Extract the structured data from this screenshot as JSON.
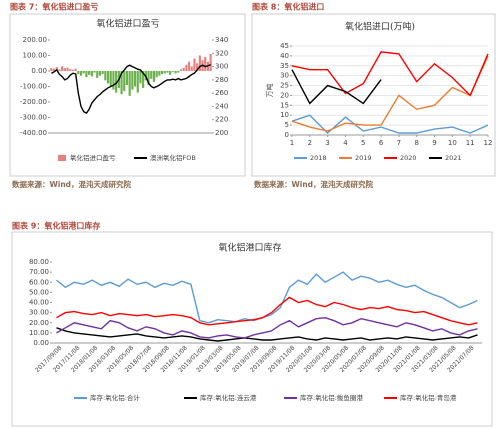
{
  "chart_data": [
    {
      "type": "bar_line",
      "figure_label": "图表 7：氧化铝进口盈亏",
      "title": "氧化铝进口盈亏",
      "source": "数据来源：Wind，混沌天成研究院",
      "ylim": [
        -400,
        200
      ],
      "yticks": [
        {
          "value": 200,
          "label": "200.00"
        },
        {
          "value": 100,
          "label": "100.00"
        },
        {
          "value": 0,
          "label": "0.00"
        },
        {
          "value": -100,
          "label": "-100.00"
        },
        {
          "value": -200,
          "label": "-200.00"
        },
        {
          "value": -300,
          "label": "-300.00"
        },
        {
          "value": -400,
          "label": "-400.00"
        }
      ],
      "y2lim": [
        200,
        340
      ],
      "y2ticks": [
        200,
        220,
        240,
        260,
        280,
        300,
        320,
        340
      ],
      "grid": false,
      "series": [
        {
          "name": "氧化铝进口盈亏",
          "type": "bar",
          "color": "#e88080",
          "color_negative": "#6ab04c",
          "values": [
            20,
            15,
            25,
            10,
            30,
            18,
            22,
            12,
            8,
            15,
            -20,
            -30,
            -15,
            -40,
            -25,
            -35,
            -10,
            -45,
            -30,
            -20,
            -60,
            -80,
            -100,
            -120,
            -140,
            -110,
            -150,
            -130,
            -90,
            -160,
            -120,
            -100,
            -140,
            -80,
            -110,
            -60,
            -90,
            -50,
            -70,
            -40,
            -30,
            -20,
            -15,
            -10,
            -25,
            -5,
            -15,
            -10,
            10,
            20,
            40,
            60,
            30,
            80,
            50,
            100,
            70,
            90,
            60,
            110
          ]
        },
        {
          "name": "澳洲氧化铝FOB",
          "type": "line",
          "axis": "y2",
          "color": "#000000",
          "values": [
            290,
            292,
            295,
            288,
            285,
            280,
            282,
            287,
            290,
            289,
            260,
            240,
            232,
            230,
            236,
            245,
            250,
            255,
            258,
            262,
            265,
            268,
            270,
            272,
            275,
            280,
            290,
            295,
            300,
            302,
            300,
            298,
            296,
            295,
            290,
            285,
            275,
            270,
            268,
            270,
            272,
            275,
            278,
            280,
            280,
            281,
            280,
            282,
            280,
            281,
            282,
            285,
            288,
            290,
            295,
            300,
            302,
            300,
            301,
            303
          ]
        }
      ]
    },
    {
      "type": "line",
      "figure_label": "图表 8：氧化铝进口",
      "title": "氧化铝进口(万吨)",
      "y_label": "万吨",
      "source": "数据来源：Wind，混沌天成研究院",
      "x": [
        1,
        2,
        3,
        4,
        5,
        6,
        7,
        8,
        9,
        10,
        11,
        12
      ],
      "xlim": [
        1,
        12
      ],
      "xticks": [
        1,
        2,
        3,
        4,
        5,
        6,
        7,
        8,
        9,
        10,
        11,
        12
      ],
      "ylim": [
        0,
        45
      ],
      "yticks": [
        0,
        5,
        10,
        15,
        20,
        25,
        30,
        35,
        40,
        45
      ],
      "grid": true,
      "series": [
        {
          "name": "2018",
          "color": "#5b9bd5",
          "values": [
            7,
            10,
            1,
            9,
            2,
            4,
            1,
            1,
            3,
            4,
            1,
            5
          ]
        },
        {
          "name": "2019",
          "color": "#ed7d31",
          "values": [
            7,
            4,
            2,
            6,
            5,
            5,
            20,
            13,
            15,
            24,
            20,
            40
          ]
        },
        {
          "name": "2020",
          "color": "#ff0000",
          "values": [
            35,
            33,
            33,
            21,
            26,
            42,
            41,
            27,
            36,
            29,
            20,
            41
          ]
        },
        {
          "name": "2021",
          "color": "#000000",
          "values": [
            33,
            16,
            25,
            22,
            16,
            28,
            null,
            null,
            null,
            null,
            null,
            null
          ]
        }
      ]
    },
    {
      "type": "line",
      "figure_label": "图表 9：氧化铝港口库存",
      "title": "氧化铝港口库存",
      "xticks": [
        "2017/09/08",
        "2017/11/08",
        "2018/01/08",
        "2018/03/08",
        "2018/05/08",
        "2018/07/08",
        "2018/09/08",
        "2018/11/08",
        "2019/01/08",
        "2019/03/08",
        "2019/05/08",
        "2019/07/08",
        "2019/09/08",
        "2019/11/08",
        "2020/01/08",
        "2020/03/08",
        "2020/05/08",
        "2020/07/08",
        "2020/09/08",
        "2020/11/08",
        "2021/01/08",
        "2021/03/08",
        "2021/05/08",
        "2021/07/08"
      ],
      "ylim": [
        0,
        80
      ],
      "yticks": [
        {
          "value": 0,
          "label": "0.00"
        },
        {
          "value": 10,
          "label": "10.00"
        },
        {
          "value": 20,
          "label": "20.00"
        },
        {
          "value": 30,
          "label": "30.00"
        },
        {
          "value": 40,
          "label": "40.00"
        },
        {
          "value": 50,
          "label": "50.00"
        },
        {
          "value": 60,
          "label": "60.00"
        },
        {
          "value": 70,
          "label": "70.00"
        },
        {
          "value": 80,
          "label": "80.00"
        }
      ],
      "grid": false,
      "series": [
        {
          "name": "库存:氧化铝:合计",
          "color": "#5b9bd5",
          "values": [
            62,
            55,
            60,
            58,
            62,
            57,
            60,
            56,
            63,
            58,
            60,
            55,
            59,
            57,
            61,
            58,
            22,
            20,
            23,
            22,
            21,
            24,
            22,
            25,
            28,
            35,
            55,
            62,
            58,
            68,
            60,
            65,
            70,
            62,
            66,
            64,
            60,
            62,
            58,
            55,
            57,
            52,
            48,
            45,
            40,
            35,
            38,
            42
          ]
        },
        {
          "name": "库存:氧化铝:连云港",
          "color": "#000000",
          "values": [
            15,
            12,
            10,
            9,
            8,
            7,
            6,
            7,
            8,
            9,
            7,
            6,
            5,
            6,
            7,
            6,
            4,
            3,
            2,
            3,
            4,
            5,
            4,
            3,
            3,
            4,
            5,
            6,
            4,
            3,
            5,
            4,
            3,
            4,
            5,
            3,
            4,
            5,
            4,
            6,
            5,
            4,
            3,
            4,
            5,
            6,
            5,
            8
          ]
        },
        {
          "name": "库存:氧化铝:鲅鱼圈港",
          "color": "#7030a0",
          "values": [
            10,
            15,
            20,
            18,
            16,
            14,
            22,
            20,
            15,
            12,
            16,
            14,
            10,
            8,
            12,
            10,
            6,
            5,
            7,
            8,
            6,
            5,
            8,
            10,
            12,
            18,
            22,
            16,
            20,
            24,
            25,
            22,
            18,
            20,
            24,
            22,
            20,
            18,
            16,
            20,
            18,
            15,
            12,
            14,
            10,
            8,
            12,
            14
          ]
        },
        {
          "name": "库存:氧化铝:青岛港",
          "color": "#ff0000",
          "values": [
            25,
            30,
            31,
            29,
            28,
            30,
            27,
            29,
            28,
            27,
            28,
            26,
            27,
            28,
            27,
            25,
            20,
            18,
            19,
            20,
            21,
            22,
            23,
            25,
            30,
            38,
            45,
            40,
            42,
            38,
            36,
            40,
            38,
            35,
            33,
            35,
            34,
            36,
            33,
            32,
            30,
            31,
            28,
            25,
            22,
            20,
            18,
            20
          ]
        }
      ]
    }
  ]
}
